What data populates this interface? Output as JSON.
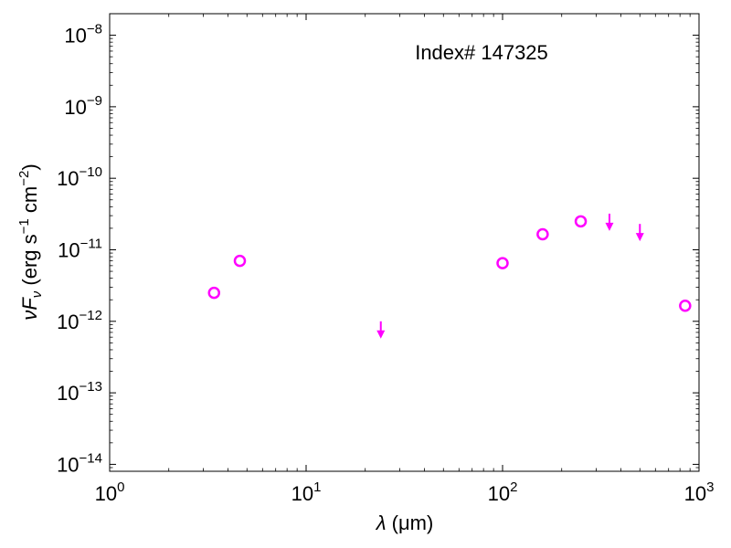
{
  "chart_data": {
    "type": "scatter",
    "title": "",
    "annotation": "Index# 147325",
    "xlabel": {
      "symbol": "λ",
      "unit": "(μm)"
    },
    "ylabel": {
      "symbol": "ν",
      "sub": "ν",
      "rest": " (erg s",
      "exp1": "−1",
      "mid": " cm",
      "exp2": "−2",
      "close": ")"
    },
    "xscale": "log",
    "yscale": "log",
    "xlim": [
      1,
      1000
    ],
    "ylim": [
      8e-15,
      2e-08
    ],
    "x_ticks": [
      {
        "base": "10",
        "exp": "0",
        "value": 1
      },
      {
        "base": "10",
        "exp": "1",
        "value": 10
      },
      {
        "base": "10",
        "exp": "2",
        "value": 100
      },
      {
        "base": "10",
        "exp": "3",
        "value": 1000
      }
    ],
    "y_ticks": [
      {
        "base": "10",
        "exp": "−14",
        "value": 1e-14
      },
      {
        "base": "10",
        "exp": "−13",
        "value": 1e-13
      },
      {
        "base": "10",
        "exp": "−12",
        "value": 1e-12
      },
      {
        "base": "10",
        "exp": "−11",
        "value": 1e-11
      },
      {
        "base": "10",
        "exp": "−10",
        "value": 1e-10
      },
      {
        "base": "10",
        "exp": "−9",
        "value": 1e-09
      },
      {
        "base": "10",
        "exp": "−8",
        "value": 1e-08
      }
    ],
    "grid": false,
    "legend": "none",
    "series": [
      {
        "marker": "open-circle",
        "points": [
          {
            "x": 3.4,
            "y": 2.5e-12
          },
          {
            "x": 4.6,
            "y": 7e-12
          },
          {
            "x": 100,
            "y": 6.5e-12
          },
          {
            "x": 160,
            "y": 1.65e-11
          },
          {
            "x": 250,
            "y": 2.5e-11
          },
          {
            "x": 850,
            "y": 1.65e-12
          }
        ]
      },
      {
        "marker": "upper-limit-arrow",
        "points": [
          {
            "x": 24,
            "y": 1e-12
          },
          {
            "x": 350,
            "y": 3.2e-11
          },
          {
            "x": 500,
            "y": 2.3e-11
          }
        ]
      }
    ],
    "colors": {
      "marker": "#ff00ff",
      "axes": "#000000"
    }
  }
}
